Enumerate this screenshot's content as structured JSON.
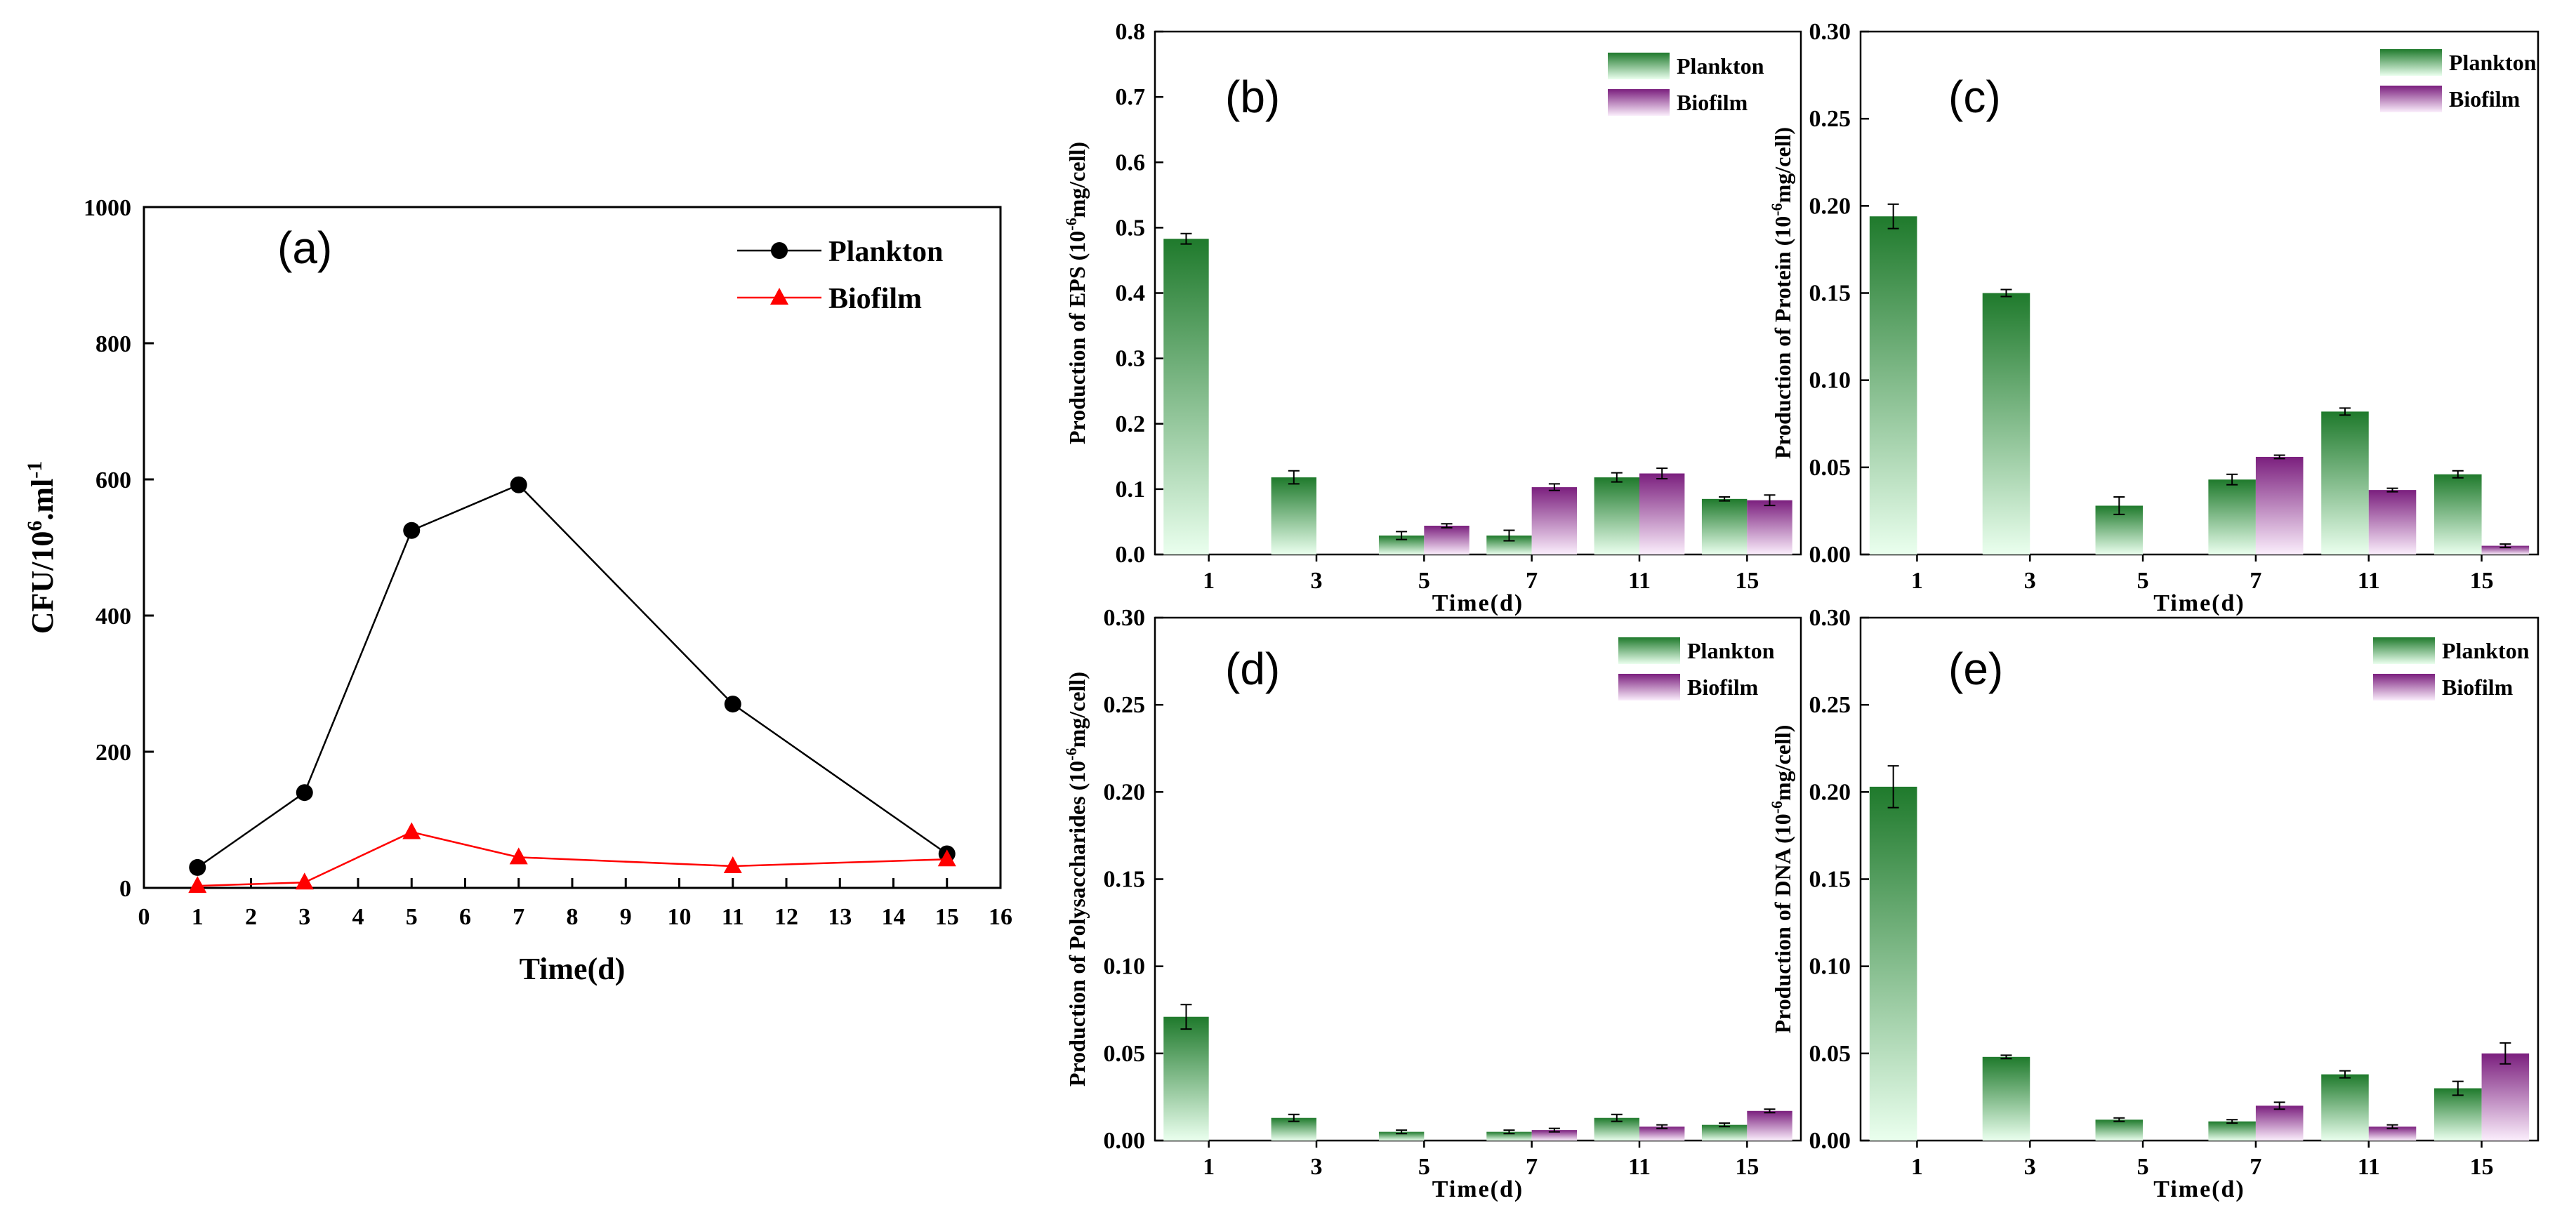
{
  "colors": {
    "plankton_dark": "#1f7a2c",
    "plankton_light": "#eaffee",
    "biofilm_dark": "#7b1f7e",
    "biofilm_light": "#fbeefc",
    "line_plankton": "#000000",
    "line_biofilm": "#ff0000"
  },
  "chart_data": [
    {
      "id": "a",
      "type": "line",
      "panel_label": "(a)",
      "xlabel": "Time(d)",
      "ylabel_parts": [
        "CFU/10",
        "6",
        ".ml",
        "-1"
      ],
      "xlim": [
        0,
        16
      ],
      "ylim": [
        0,
        1000
      ],
      "xticks": [
        0,
        1,
        2,
        3,
        4,
        5,
        6,
        7,
        8,
        9,
        10,
        11,
        12,
        13,
        14,
        15,
        16
      ],
      "yticks": [
        0,
        200,
        400,
        600,
        800,
        1000
      ],
      "legend_position": "top-right",
      "series": [
        {
          "name": "Plankton",
          "marker": "circle",
          "x": [
            1,
            3,
            5,
            7,
            11,
            15
          ],
          "y": [
            30,
            140,
            525,
            592,
            270,
            50
          ]
        },
        {
          "name": "Biofilm",
          "marker": "triangle",
          "x": [
            1,
            3,
            5,
            7,
            11,
            15
          ],
          "y": [
            3,
            8,
            82,
            45,
            32,
            42
          ]
        }
      ]
    },
    {
      "id": "b",
      "type": "bar",
      "panel_label": "(b)",
      "xlabel": "Time(d)",
      "ylabel_parts": [
        "Production of EPS (10",
        "-6",
        "mg/cell)"
      ],
      "categories": [
        "1",
        "3",
        "5",
        "7",
        "11",
        "15"
      ],
      "ylim": [
        0,
        0.8
      ],
      "yticks": [
        "0.0",
        "0.1",
        "0.2",
        "0.3",
        "0.4",
        "0.5",
        "0.6",
        "0.7",
        "0.8"
      ],
      "legend_position": "top-right",
      "series": [
        {
          "name": "Plankton",
          "values": [
            0.483,
            0.118,
            0.029,
            0.029,
            0.118,
            0.085
          ],
          "errors": [
            0.008,
            0.01,
            0.006,
            0.008,
            0.007,
            0.003
          ]
        },
        {
          "name": "Biofilm",
          "values": [
            0,
            0,
            0.044,
            0.103,
            0.124,
            0.083
          ],
          "errors": [
            0,
            0,
            0.003,
            0.005,
            0.008,
            0.008
          ]
        }
      ]
    },
    {
      "id": "c",
      "type": "bar",
      "panel_label": "(c)",
      "xlabel": "Time(d)",
      "ylabel_parts": [
        "Production of Protein (10",
        "-6",
        "mg/cell)"
      ],
      "categories": [
        "1",
        "3",
        "5",
        "7",
        "11",
        "15"
      ],
      "ylim": [
        0,
        0.3
      ],
      "yticks": [
        "0.00",
        "0.05",
        "0.10",
        "0.15",
        "0.20",
        "0.25",
        "0.30"
      ],
      "legend_position": "top-right",
      "series": [
        {
          "name": "Plankton",
          "values": [
            0.194,
            0.15,
            0.028,
            0.043,
            0.082,
            0.046
          ],
          "errors": [
            0.007,
            0.002,
            0.005,
            0.003,
            0.002,
            0.002
          ]
        },
        {
          "name": "Biofilm",
          "values": [
            0,
            0,
            0,
            0.056,
            0.037,
            0.005
          ],
          "errors": [
            0,
            0,
            0,
            0.001,
            0.001,
            0.001
          ]
        }
      ]
    },
    {
      "id": "d",
      "type": "bar",
      "panel_label": "(d)",
      "xlabel": "Time(d)",
      "ylabel_parts": [
        "Production of Polysaccharides (10",
        "-6",
        "mg/cell)"
      ],
      "categories": [
        "1",
        "3",
        "5",
        "7",
        "11",
        "15"
      ],
      "ylim": [
        0,
        0.3
      ],
      "yticks": [
        "0.00",
        "0.05",
        "0.10",
        "0.15",
        "0.20",
        "0.25",
        "0.30"
      ],
      "legend_position": "top-right",
      "series": [
        {
          "name": "Plankton",
          "values": [
            0.071,
            0.013,
            0.005,
            0.005,
            0.013,
            0.009
          ],
          "errors": [
            0.007,
            0.002,
            0.001,
            0.001,
            0.002,
            0.001
          ]
        },
        {
          "name": "Biofilm",
          "values": [
            0,
            0,
            0,
            0.006,
            0.008,
            0.017
          ],
          "errors": [
            0,
            0,
            0,
            0.001,
            0.001,
            0.001
          ]
        }
      ]
    },
    {
      "id": "e",
      "type": "bar",
      "panel_label": "(e)",
      "xlabel": "Time(d)",
      "ylabel_parts": [
        "Production of DNA (10",
        "-6",
        "mg/cell)"
      ],
      "categories": [
        "1",
        "3",
        "5",
        "7",
        "11",
        "15"
      ],
      "ylim": [
        0,
        0.3
      ],
      "yticks": [
        "0.00",
        "0.05",
        "0.10",
        "0.15",
        "0.20",
        "0.25",
        "0.30"
      ],
      "legend_position": "top-right",
      "series": [
        {
          "name": "Plankton",
          "values": [
            0.203,
            0.048,
            0.012,
            0.011,
            0.038,
            0.03
          ],
          "errors": [
            0.012,
            0.001,
            0.001,
            0.001,
            0.002,
            0.004
          ]
        },
        {
          "name": "Biofilm",
          "values": [
            0,
            0,
            0,
            0.02,
            0.008,
            0.05
          ],
          "errors": [
            0,
            0,
            0,
            0.002,
            0.001,
            0.006
          ]
        }
      ]
    }
  ]
}
